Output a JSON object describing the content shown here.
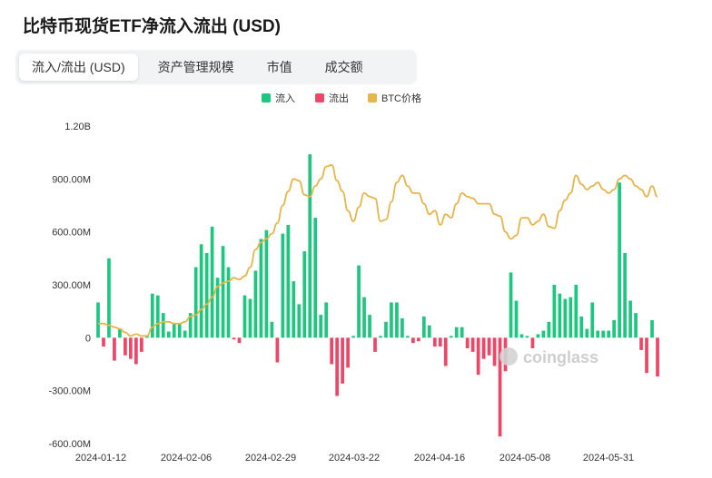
{
  "header": {
    "title": "比特币现货ETF净流入流出 (USD)"
  },
  "tabs": [
    {
      "label": "流入/流出 (USD)",
      "active": true
    },
    {
      "label": "资产管理规模",
      "active": false
    },
    {
      "label": "市值",
      "active": false
    },
    {
      "label": "成交额",
      "active": false
    }
  ],
  "watermark": "coinglass",
  "colors": {
    "inflow": "#1ec77f",
    "outflow": "#ef4566",
    "btc_price": "#e8b54a"
  },
  "chart_data": {
    "type": "bar",
    "legend": [
      "流入",
      "流出",
      "BTC价格"
    ],
    "legend_position": "top-center",
    "grid": false,
    "y_ticks": [
      "1.20B",
      "900.00M",
      "600.00M",
      "300.00M",
      "0",
      "-300.00M",
      "-600.00M"
    ],
    "ylim": [
      -600,
      1200
    ],
    "y_unit": "M",
    "x_ticks": [
      "2024-01-12",
      "2024-02-06",
      "2024-02-29",
      "2024-03-22",
      "2024-04-16",
      "2024-05-08",
      "2024-05-31"
    ],
    "flows_musd": [
      200,
      -50,
      450,
      -130,
      50,
      -100,
      -120,
      -150,
      -80,
      10,
      250,
      240,
      140,
      35,
      80,
      80,
      40,
      140,
      400,
      530,
      480,
      630,
      340,
      520,
      400,
      -10,
      -30,
      240,
      220,
      380,
      560,
      610,
      90,
      -140,
      590,
      640,
      320,
      190,
      490,
      1040,
      680,
      130,
      200,
      -150,
      -330,
      -260,
      -170,
      10,
      410,
      230,
      130,
      -80,
      10,
      90,
      200,
      200,
      110,
      10,
      -30,
      -20,
      120,
      70,
      -50,
      -50,
      -160,
      10,
      60,
      60,
      -60,
      -80,
      -210,
      -120,
      -100,
      -160,
      -560,
      -190,
      370,
      210,
      20,
      10,
      -60,
      20,
      40,
      90,
      300,
      250,
      220,
      230,
      300,
      120,
      50,
      200,
      40,
      40,
      40,
      100,
      880,
      480,
      210,
      140,
      -70,
      -200,
      100,
      -220
    ],
    "btc_price_scaled_musd": [
      80,
      80,
      70,
      60,
      50,
      30,
      10,
      20,
      10,
      10,
      60,
      80,
      90,
      90,
      80,
      80,
      90,
      120,
      130,
      160,
      190,
      230,
      290,
      310,
      320,
      340,
      330,
      350,
      400,
      500,
      540,
      560,
      590,
      650,
      750,
      830,
      900,
      890,
      810,
      800,
      860,
      900,
      970,
      980,
      890,
      830,
      720,
      660,
      740,
      820,
      800,
      790,
      660,
      670,
      770,
      880,
      920,
      860,
      820,
      820,
      760,
      700,
      720,
      640,
      700,
      680,
      760,
      820,
      800,
      790,
      760,
      760,
      760,
      700,
      690,
      600,
      560,
      580,
      680,
      680,
      640,
      660,
      700,
      630,
      620,
      720,
      780,
      820,
      920,
      870,
      840,
      860,
      880,
      840,
      820,
      840,
      900,
      920,
      900,
      860,
      840,
      800,
      860,
      800
    ]
  }
}
